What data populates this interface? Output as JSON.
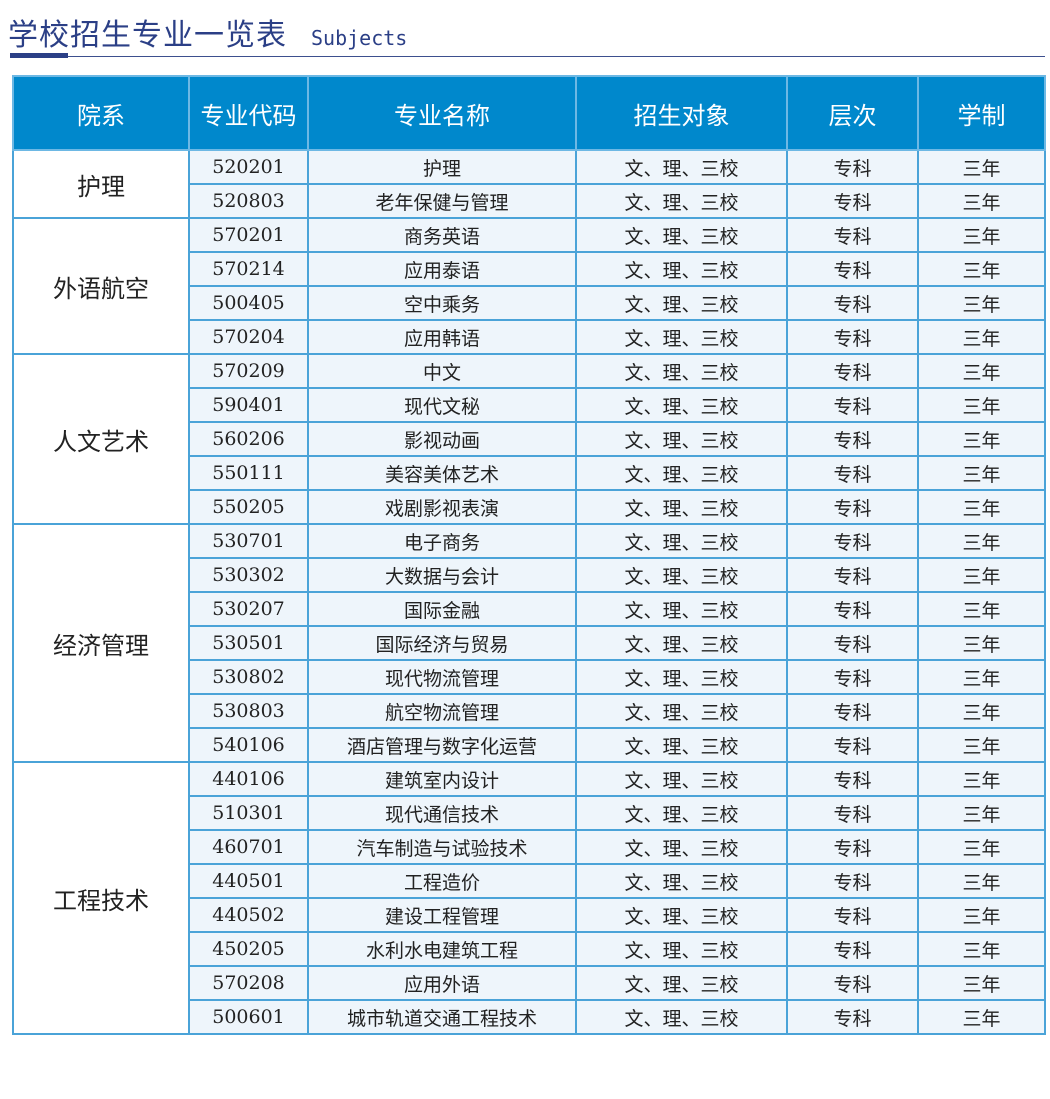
{
  "header": {
    "title": "学校招生专业一览表",
    "subtitle": "Subjects"
  },
  "colors": {
    "header_bg": "#0088cc",
    "border": "#4aa3d8",
    "title": "#2b3f86",
    "cell_bg": "#eef5fb"
  },
  "table": {
    "columns": [
      "院系",
      "专业代码",
      "专业名称",
      "招生对象",
      "层次",
      "学制"
    ],
    "departments": [
      {
        "name": "护理",
        "rows": [
          {
            "code": "520201",
            "major": "护理",
            "target": "文、理、三校",
            "level": "专科",
            "duration": "三年"
          },
          {
            "code": "520803",
            "major": "老年保健与管理",
            "target": "文、理、三校",
            "level": "专科",
            "duration": "三年"
          }
        ]
      },
      {
        "name": "外语航空",
        "rows": [
          {
            "code": "570201",
            "major": "商务英语",
            "target": "文、理、三校",
            "level": "专科",
            "duration": "三年"
          },
          {
            "code": "570214",
            "major": "应用泰语",
            "target": "文、理、三校",
            "level": "专科",
            "duration": "三年"
          },
          {
            "code": "500405",
            "major": "空中乘务",
            "target": "文、理、三校",
            "level": "专科",
            "duration": "三年"
          },
          {
            "code": "570204",
            "major": "应用韩语",
            "target": "文、理、三校",
            "level": "专科",
            "duration": "三年"
          }
        ]
      },
      {
        "name": "人文艺术",
        "rows": [
          {
            "code": "570209",
            "major": "中文",
            "target": "文、理、三校",
            "level": "专科",
            "duration": "三年"
          },
          {
            "code": "590401",
            "major": "现代文秘",
            "target": "文、理、三校",
            "level": "专科",
            "duration": "三年"
          },
          {
            "code": "560206",
            "major": "影视动画",
            "target": "文、理、三校",
            "level": "专科",
            "duration": "三年"
          },
          {
            "code": "550111",
            "major": "美容美体艺术",
            "target": "文、理、三校",
            "level": "专科",
            "duration": "三年"
          },
          {
            "code": "550205",
            "major": "戏剧影视表演",
            "target": "文、理、三校",
            "level": "专科",
            "duration": "三年"
          }
        ]
      },
      {
        "name": "经济管理",
        "rows": [
          {
            "code": "530701",
            "major": "电子商务",
            "target": "文、理、三校",
            "level": "专科",
            "duration": "三年"
          },
          {
            "code": "530302",
            "major": "大数据与会计",
            "target": "文、理、三校",
            "level": "专科",
            "duration": "三年"
          },
          {
            "code": "530207",
            "major": "国际金融",
            "target": "文、理、三校",
            "level": "专科",
            "duration": "三年"
          },
          {
            "code": "530501",
            "major": "国际经济与贸易",
            "target": "文、理、三校",
            "level": "专科",
            "duration": "三年"
          },
          {
            "code": "530802",
            "major": "现代物流管理",
            "target": "文、理、三校",
            "level": "专科",
            "duration": "三年"
          },
          {
            "code": "530803",
            "major": "航空物流管理",
            "target": "文、理、三校",
            "level": "专科",
            "duration": "三年"
          },
          {
            "code": "540106",
            "major": "酒店管理与数字化运营",
            "target": "文、理、三校",
            "level": "专科",
            "duration": "三年"
          }
        ]
      },
      {
        "name": "工程技术",
        "rows": [
          {
            "code": "440106",
            "major": "建筑室内设计",
            "target": "文、理、三校",
            "level": "专科",
            "duration": "三年"
          },
          {
            "code": "510301",
            "major": "现代通信技术",
            "target": "文、理、三校",
            "level": "专科",
            "duration": "三年"
          },
          {
            "code": "460701",
            "major": "汽车制造与试验技术",
            "target": "文、理、三校",
            "level": "专科",
            "duration": "三年"
          },
          {
            "code": "440501",
            "major": "工程造价",
            "target": "文、理、三校",
            "level": "专科",
            "duration": "三年"
          },
          {
            "code": "440502",
            "major": "建设工程管理",
            "target": "文、理、三校",
            "level": "专科",
            "duration": "三年"
          },
          {
            "code": "450205",
            "major": "水利水电建筑工程",
            "target": "文、理、三校",
            "level": "专科",
            "duration": "三年"
          },
          {
            "code": "570208",
            "major": "应用外语",
            "target": "文、理、三校",
            "level": "专科",
            "duration": "三年"
          },
          {
            "code": "500601",
            "major": "城市轨道交通工程技术",
            "target": "文、理、三校",
            "level": "专科",
            "duration": "三年"
          }
        ]
      }
    ]
  }
}
